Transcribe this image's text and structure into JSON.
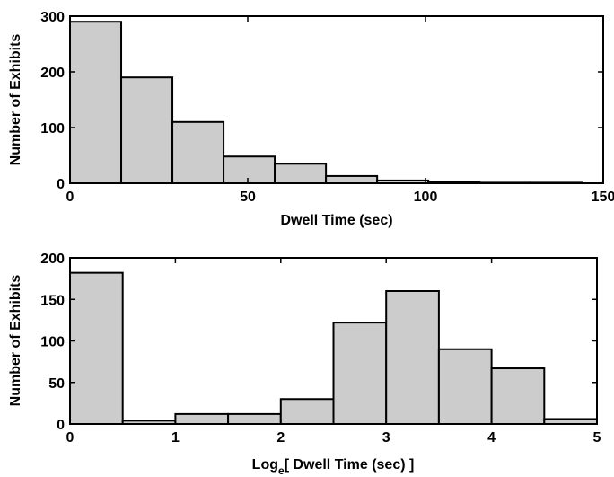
{
  "chart_data": [
    {
      "type": "bar",
      "xlabel": "Dwell Time (sec)",
      "ylabel": "Number of Exhibits",
      "xlim": [
        0,
        150
      ],
      "ylim": [
        0,
        300
      ],
      "xticks": [
        "0",
        "50",
        "100",
        "150"
      ],
      "yticks": [
        "0",
        "100",
        "200",
        "300"
      ],
      "bin_edges": [
        0,
        14.4,
        28.8,
        43.2,
        57.6,
        72,
        86.4,
        100.8,
        115.2,
        129.6,
        144
      ],
      "values": [
        290,
        190,
        110,
        48,
        35,
        13,
        5,
        2,
        1,
        1
      ],
      "colors": {
        "bar_fill": "#cccccc",
        "bar_edge": "#000000"
      }
    },
    {
      "type": "bar",
      "xlabel_prefix": "Log",
      "xlabel_subscript": "e",
      "xlabel_suffix": "[ Dwell Time (sec) ]",
      "ylabel": "Number of Exhibits",
      "xlim": [
        0,
        5
      ],
      "ylim": [
        0,
        200
      ],
      "xticks": [
        "0",
        "1",
        "2",
        "3",
        "4",
        "5"
      ],
      "yticks": [
        "0",
        "50",
        "100",
        "150",
        "200"
      ],
      "bin_edges": [
        0,
        0.5,
        1,
        1.5,
        2,
        2.5,
        3,
        3.5,
        4,
        4.5,
        5
      ],
      "values": [
        182,
        4,
        12,
        12,
        30,
        122,
        160,
        90,
        67,
        6
      ],
      "colors": {
        "bar_fill": "#cccccc",
        "bar_edge": "#000000"
      }
    }
  ]
}
